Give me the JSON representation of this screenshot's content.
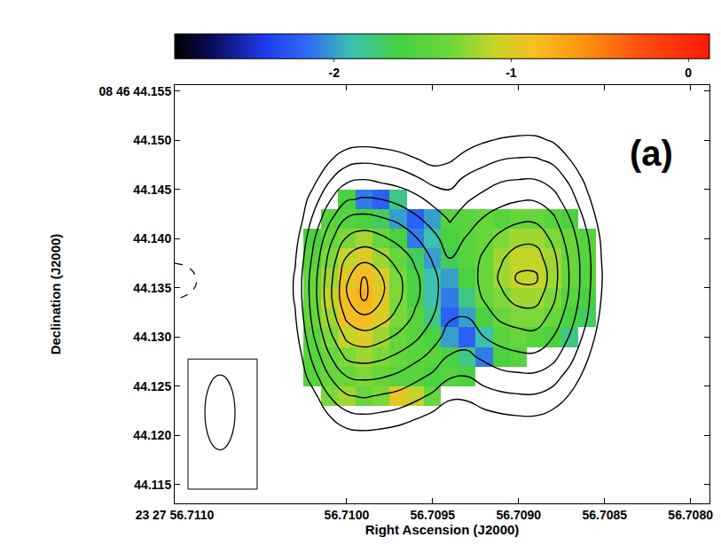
{
  "chart_data": {
    "type": "contour_heatmap",
    "x_label": "Right Ascension (J2000)",
    "y_label": "Declination (J2000)",
    "annotations": [
      "(a)"
    ],
    "xlim": [
      56.711,
      56.70789
    ],
    "xticks": [
      {
        "value": 56.711,
        "label": "23 27 56.7110"
      },
      {
        "value": 56.71,
        "label": "56.7100"
      },
      {
        "value": 56.7095,
        "label": "56.7095"
      },
      {
        "value": 56.709,
        "label": "56.7090"
      },
      {
        "value": 56.7085,
        "label": "56.7085"
      },
      {
        "value": 56.708,
        "label": "56.7080"
      }
    ],
    "ylim": [
      44.1131,
      44.1556
    ],
    "yticks": [
      {
        "value": 44.115,
        "label": "44.115"
      },
      {
        "value": 44.12,
        "label": "44.120"
      },
      {
        "value": 44.125,
        "label": "44.125"
      },
      {
        "value": 44.13,
        "label": "44.130"
      },
      {
        "value": 44.135,
        "label": "44.135"
      },
      {
        "value": 44.14,
        "label": "44.140"
      },
      {
        "value": 44.145,
        "label": "44.145"
      },
      {
        "value": 44.15,
        "label": "44.150"
      },
      {
        "value": 44.155,
        "label": "08 46 44.155"
      }
    ],
    "x": [
      56.7104,
      56.7103,
      56.7102,
      56.7101,
      56.71,
      56.7099,
      56.7098,
      56.7097,
      56.7096,
      56.7095,
      56.7094,
      56.7093,
      56.7092,
      56.7091,
      56.709,
      56.7089,
      56.7088,
      56.7087,
      56.7086,
      56.7085,
      56.7084
    ],
    "y": [
      44.118,
      44.12,
      44.122,
      44.124,
      44.126,
      44.128,
      44.13,
      44.132,
      44.134,
      44.136,
      44.138,
      44.14,
      44.142,
      44.144,
      44.146,
      44.148,
      44.15,
      44.152
    ],
    "contour_levels": [
      0,
      1,
      2,
      3,
      4,
      5,
      6,
      7,
      8
    ],
    "intensity": [
      [
        -1,
        -1,
        -1,
        -1,
        -1,
        -1,
        -1,
        -1,
        -1,
        -1,
        -1,
        -1,
        -1,
        -1,
        -1,
        -1,
        -1,
        -1,
        -1,
        -1,
        -1
      ],
      [
        -1,
        -1,
        -1,
        -1,
        -0.4,
        -0.3,
        -0.4,
        -0.6,
        -0.9,
        -1,
        -1,
        -1,
        -1,
        -1,
        -0.9,
        -0.9,
        -1,
        -1,
        -1,
        -1,
        -1
      ],
      [
        -1,
        -1,
        -1,
        0,
        0.7,
        0.9,
        0.8,
        0.6,
        0.2,
        -0.2,
        -0.7,
        -0.6,
        -0.3,
        -0.1,
        0,
        0,
        -0.3,
        -0.9,
        -1,
        -1,
        -1
      ],
      [
        -1,
        -1,
        -0.4,
        1,
        1.9,
        2.1,
        1.9,
        1.7,
        1.3,
        0.8,
        0.2,
        0.2,
        0.6,
        0.8,
        0.9,
        0.9,
        0.6,
        -0.1,
        -1,
        -1,
        -1
      ],
      [
        -1,
        -1,
        0.5,
        2,
        3,
        3.2,
        3.1,
        2.8,
        2.3,
        1.8,
        1.1,
        1,
        1.4,
        1.7,
        1.8,
        1.8,
        1.4,
        0.6,
        -0.4,
        -1,
        -1
      ],
      [
        -1,
        -0.8,
        1.2,
        2.9,
        4.2,
        4.4,
        4.2,
        3.8,
        3.3,
        2.7,
        1.9,
        1.8,
        2.2,
        2.6,
        2.8,
        2.8,
        2.3,
        1.3,
        0.1,
        -1,
        -1
      ],
      [
        -1,
        -0.4,
        1.8,
        3.7,
        5.2,
        5.6,
        5.3,
        4.8,
        4.2,
        3.4,
        2.6,
        2.4,
        3,
        3.4,
        3.6,
        3.7,
        3,
        1.9,
        0.6,
        -0.8,
        -1
      ],
      [
        -1,
        -0.1,
        2.2,
        4.3,
        6.2,
        6.8,
        6.4,
        5.7,
        4.8,
        4,
        3.1,
        3,
        3.6,
        4.2,
        4.5,
        4.5,
        3.7,
        2.4,
        1,
        -0.5,
        -1
      ],
      [
        -1,
        0.1,
        2.4,
        4.7,
        6.9,
        8.2,
        7.1,
        6.2,
        5.2,
        4.3,
        3.3,
        3.4,
        4.1,
        4.8,
        5.4,
        5.4,
        4.2,
        2.8,
        1.2,
        -0.3,
        -1
      ],
      [
        -1,
        0.1,
        2.4,
        4.6,
        6.8,
        8.1,
        7.1,
        6.2,
        5.2,
        4.3,
        3.3,
        3.5,
        4.3,
        5.2,
        6.2,
        6.2,
        4.4,
        2.9,
        1.3,
        -0.2,
        -1
      ],
      [
        -1,
        -0.1,
        2.1,
        4.3,
        6.1,
        6.7,
        6.3,
        5.6,
        4.8,
        3.9,
        3,
        3.4,
        4.2,
        4.9,
        5.5,
        5.5,
        4.3,
        2.8,
        1.3,
        -0.3,
        -1
      ],
      [
        -1,
        -0.4,
        1.7,
        3.7,
        5.1,
        5.5,
        5.2,
        4.7,
        4.1,
        3.3,
        2.5,
        3.1,
        3.7,
        4.3,
        4.7,
        4.7,
        3.8,
        2.5,
        1.1,
        -0.4,
        -1
      ],
      [
        -1,
        -0.9,
        1.1,
        2.8,
        4.1,
        4.3,
        4.1,
        3.8,
        3.2,
        2.6,
        1.9,
        2.5,
        3.1,
        3.5,
        3.8,
        3.8,
        3.2,
        2,
        0.7,
        -0.7,
        -1
      ],
      [
        -1,
        -1,
        0.4,
        1.9,
        2.9,
        3.1,
        3,
        2.7,
        2.3,
        1.7,
        1.3,
        1.9,
        2.3,
        2.7,
        2.9,
        2.9,
        2.4,
        1.4,
        0.2,
        -1,
        -1
      ],
      [
        -1,
        -1,
        -0.4,
        0.9,
        1.8,
        2,
        1.8,
        1.6,
        1.2,
        0.7,
        0.7,
        1.2,
        1.6,
        1.9,
        2,
        2,
        1.6,
        0.8,
        -0.3,
        -1,
        -1
      ],
      [
        -1,
        -1,
        -1,
        -0.1,
        0.6,
        0.8,
        0.7,
        0.5,
        0.1,
        -0.3,
        -0.1,
        0.4,
        0.7,
        1,
        1.1,
        1.1,
        0.8,
        0,
        -0.9,
        -1,
        -1
      ],
      [
        -1,
        -1,
        -1,
        -1,
        -0.5,
        -0.4,
        -0.5,
        -0.7,
        -1,
        -1,
        -0.8,
        -0.4,
        -0.1,
        0.1,
        0.2,
        0.2,
        -0.1,
        -0.7,
        -1,
        -1,
        -1
      ],
      [
        -1,
        -1,
        -1,
        -1,
        -1,
        -1,
        -1,
        -1,
        -1,
        -1,
        -1,
        -1,
        -1,
        -0.8,
        -0.7,
        -0.7,
        -1,
        -1,
        -1,
        -1,
        -1
      ]
    ],
    "spectral_index": [
      [
        null,
        null,
        null,
        null,
        null,
        null,
        null,
        null,
        null,
        null,
        null,
        null,
        null,
        null,
        null,
        null,
        null,
        null,
        null,
        null,
        null
      ],
      [
        null,
        null,
        null,
        null,
        null,
        null,
        null,
        null,
        null,
        null,
        null,
        null,
        null,
        null,
        null,
        null,
        null,
        null,
        null,
        null,
        null
      ],
      [
        null,
        null,
        null,
        null,
        null,
        null,
        null,
        null,
        null,
        null,
        null,
        null,
        null,
        null,
        null,
        null,
        null,
        null,
        null,
        null,
        null
      ],
      [
        null,
        null,
        null,
        -1.3,
        -1.2,
        -1.4,
        -1.3,
        -0.95,
        -1.1,
        -1.4,
        null,
        null,
        null,
        null,
        null,
        null,
        null,
        null,
        null,
        null,
        null
      ],
      [
        null,
        null,
        -1.5,
        -1.4,
        -1.4,
        -1.3,
        -1.4,
        -1.5,
        -1.5,
        -1.6,
        -1.5,
        -1.6,
        null,
        null,
        null,
        null,
        null,
        null,
        null,
        null,
        null
      ],
      [
        null,
        null,
        -1.5,
        -1.4,
        -1.3,
        -1.2,
        -1.3,
        -1.4,
        -1.5,
        -1.5,
        -1.6,
        -1.8,
        -2.1,
        -1.6,
        -1.5,
        null,
        null,
        null,
        null,
        null,
        null
      ],
      [
        null,
        null,
        -1.5,
        -1.3,
        -1.1,
        -1.0,
        -1.2,
        -1.4,
        -1.5,
        -1.6,
        -2.0,
        -2.2,
        -1.9,
        -1.5,
        -1.4,
        -1.5,
        -1.6,
        -1.8,
        null,
        null,
        null
      ],
      [
        null,
        null,
        -1.4,
        -1.2,
        -0.9,
        -0.85,
        -1.0,
        -1.3,
        -1.5,
        -1.8,
        -2.2,
        -2.0,
        -1.6,
        -1.4,
        -1.3,
        -1.3,
        -1.4,
        -1.6,
        -1.7,
        null,
        null
      ],
      [
        null,
        null,
        -1.4,
        -1.1,
        -0.85,
        -0.8,
        -0.95,
        -1.3,
        -1.6,
        -1.9,
        -2.1,
        -1.8,
        -1.4,
        -1.3,
        -1.2,
        -1.2,
        -1.3,
        -1.5,
        -1.6,
        null,
        null
      ],
      [
        null,
        null,
        -1.4,
        -1.2,
        -0.95,
        -0.85,
        -1.0,
        -1.3,
        -1.6,
        -1.9,
        -2.0,
        -1.6,
        -1.4,
        -1.2,
        -1.1,
        -1.1,
        -1.2,
        -1.4,
        -1.5,
        null,
        null
      ],
      [
        null,
        null,
        -1.5,
        -1.3,
        -1.1,
        -1.0,
        -1.2,
        -1.4,
        -1.7,
        -2.0,
        -1.7,
        -1.5,
        -1.4,
        -1.2,
        -1.1,
        -1.1,
        -1.2,
        -1.4,
        -1.5,
        null,
        null
      ],
      [
        null,
        null,
        -1.6,
        -1.4,
        -1.3,
        -1.2,
        -1.4,
        -1.6,
        -2.1,
        -1.9,
        -1.6,
        -1.5,
        -1.4,
        -1.3,
        -1.2,
        -1.2,
        -1.3,
        -1.4,
        -1.5,
        null,
        null
      ],
      [
        null,
        null,
        null,
        -1.5,
        -1.5,
        -1.6,
        -1.7,
        -2.0,
        -2.2,
        -2.0,
        -1.5,
        -1.5,
        -1.4,
        -1.5,
        -1.4,
        -1.4,
        -1.5,
        -1.6,
        null,
        null,
        null
      ],
      [
        null,
        null,
        null,
        null,
        -1.6,
        -2.1,
        -2.2,
        -1.8,
        null,
        null,
        null,
        null,
        null,
        null,
        null,
        null,
        null,
        null,
        null,
        null,
        null
      ],
      [
        null,
        null,
        null,
        null,
        null,
        null,
        null,
        null,
        null,
        null,
        null,
        null,
        null,
        null,
        null,
        null,
        null,
        null,
        null,
        null,
        null
      ],
      [
        null,
        null,
        null,
        null,
        null,
        null,
        null,
        null,
        null,
        null,
        null,
        null,
        null,
        null,
        null,
        null,
        null,
        null,
        null,
        null,
        null
      ],
      [
        null,
        null,
        null,
        null,
        null,
        null,
        null,
        null,
        null,
        null,
        null,
        null,
        null,
        null,
        null,
        null,
        null,
        null,
        null,
        null,
        null
      ],
      [
        null,
        null,
        null,
        null,
        null,
        null,
        null,
        null,
        null,
        null,
        null,
        null,
        null,
        null,
        null,
        null,
        null,
        null,
        null,
        null,
        null
      ]
    ],
    "colorbar": {
      "range": [
        -2.9,
        0.12
      ],
      "ticks": [
        -2,
        -1,
        0
      ]
    }
  }
}
